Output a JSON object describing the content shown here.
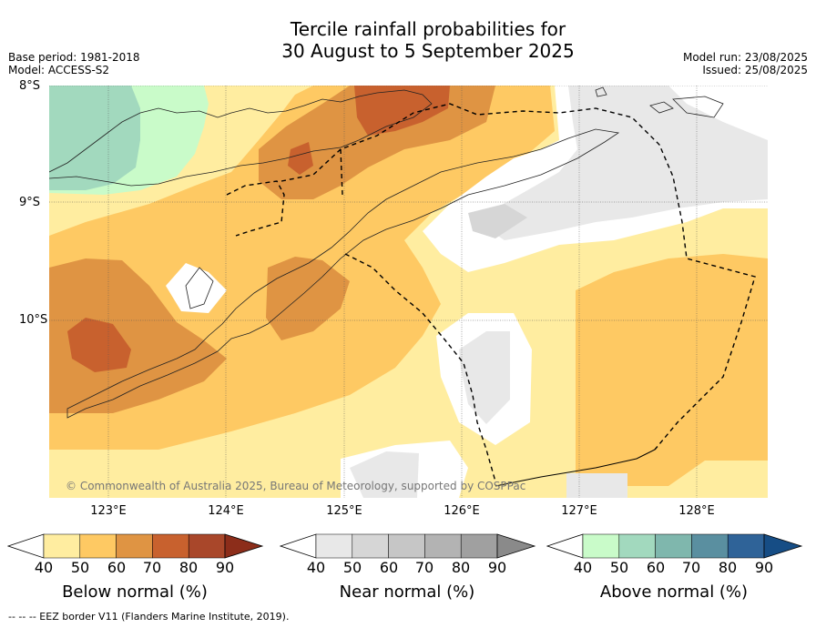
{
  "title": {
    "line1": "Tercile rainfall probabilities for",
    "line2": "30 August to 5 September 2025"
  },
  "meta": {
    "base_period": "Base period: 1981-2018",
    "model": "Model: ACCESS-S2",
    "model_run": "Model run: 23/08/2025",
    "issued": "Issued: 25/08/2025"
  },
  "axes": {
    "lat_ticks": [
      "8°S",
      "9°S",
      "10°S"
    ],
    "lon_ticks": [
      "123°E",
      "124°E",
      "125°E",
      "126°E",
      "127°E",
      "128°E"
    ]
  },
  "copyright": "© Commonwealth of Australia 2025, Bureau of Meteorology, supported by COSPPac",
  "colorbars": [
    {
      "label": "Below normal (%)",
      "ticks": [
        "40",
        "50",
        "60",
        "70",
        "80",
        "90"
      ],
      "colors": [
        "#ffffff",
        "#ffeda0",
        "#fec963",
        "#df9443",
        "#c8612e",
        "#a9472a",
        "#8c2d1a"
      ]
    },
    {
      "label": "Near normal (%)",
      "ticks": [
        "40",
        "50",
        "60",
        "70",
        "80",
        "90"
      ],
      "colors": [
        "#ffffff",
        "#e8e8e8",
        "#d6d6d6",
        "#c6c6c6",
        "#b3b3b3",
        "#a0a0a0",
        "#8a8a8a"
      ]
    },
    {
      "label": "Above normal (%)",
      "ticks": [
        "40",
        "50",
        "60",
        "70",
        "80",
        "90"
      ],
      "colors": [
        "#ffffff",
        "#c9fbc9",
        "#a2d9be",
        "#7fb7ad",
        "#5a8fa0",
        "#2f6398",
        "#164d85"
      ]
    }
  ],
  "footer": "-- -- -- EEZ border V11 (Flanders Marine Institute, 2019).",
  "colors": {
    "below_50": "#ffeda0",
    "below_60": "#fec963",
    "below_70": "#df9443",
    "below_80": "#c8612e",
    "near_50": "#e8e8e8",
    "near_60": "#d6d6d6",
    "above_50": "#c9fbc9",
    "above_60": "#a2d9be"
  }
}
